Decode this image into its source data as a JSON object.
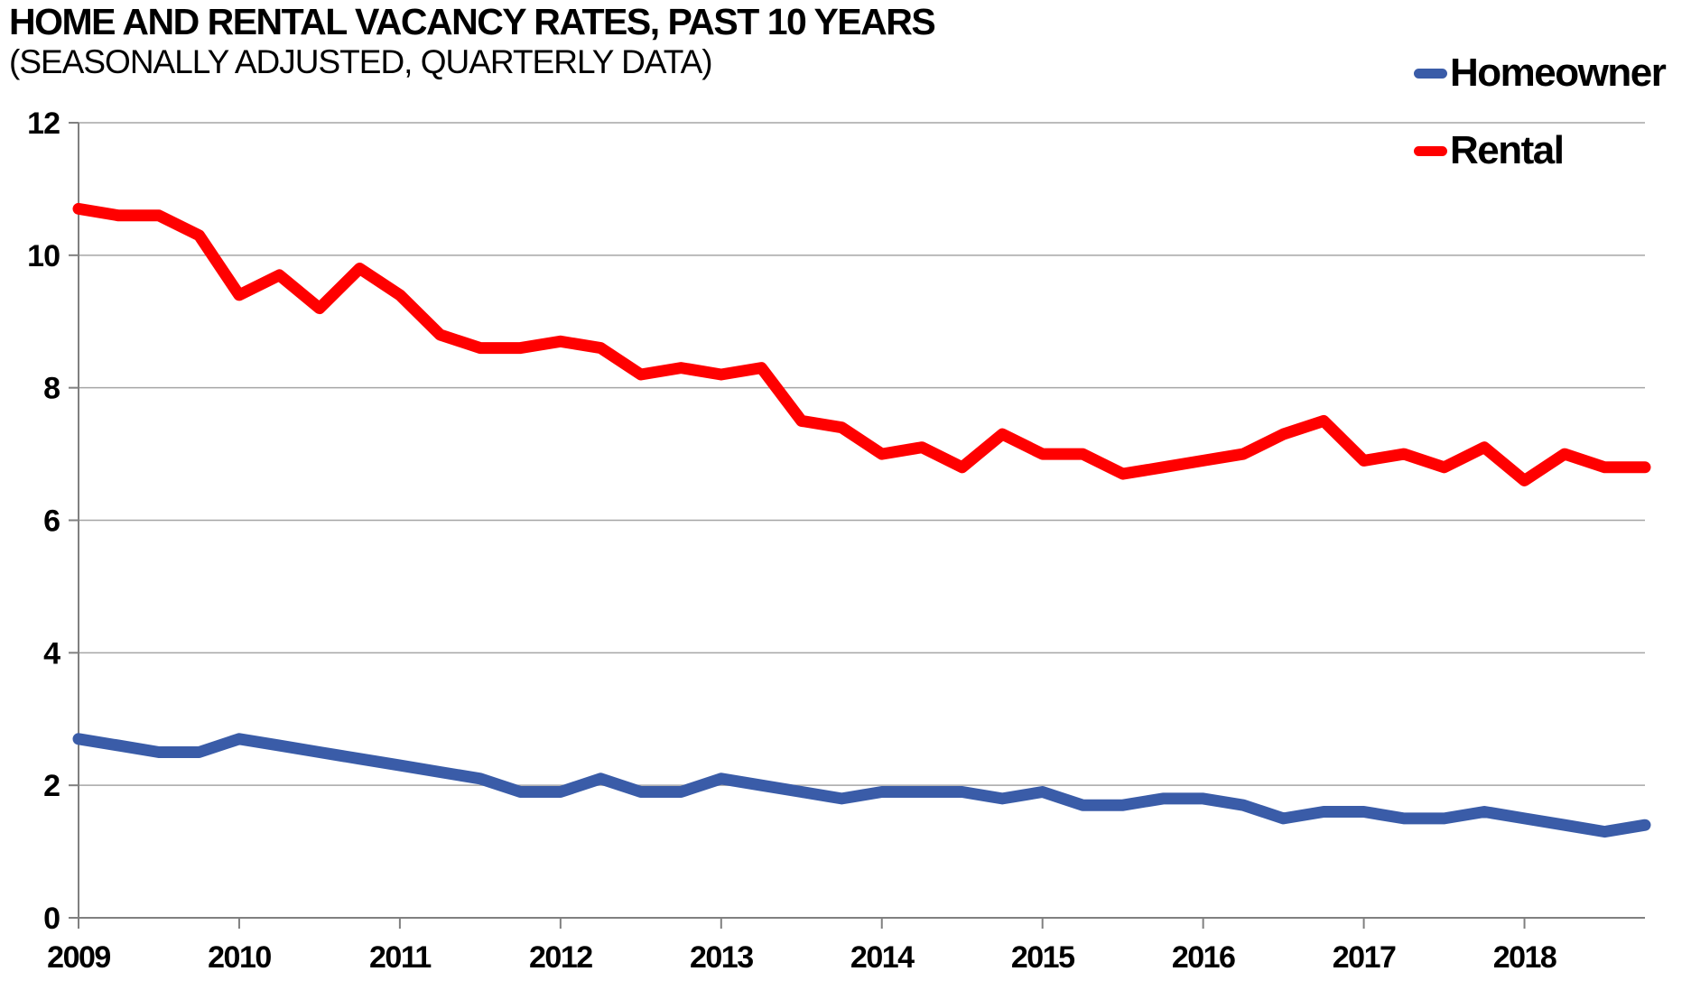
{
  "header": {
    "title": "HOME AND RENTAL VACANCY RATES, PAST 10 YEARS",
    "subtitle": "(SEASONALLY ADJUSTED, QUARTERLY DATA)"
  },
  "colors": {
    "homeowner_line": "#3A5CA8",
    "rental_line": "#FF0000",
    "gridline": "#A6A6A6",
    "axis": "#808080",
    "text": "#000000"
  },
  "chart_data": {
    "type": "line",
    "title": "HOME AND RENTAL VACANCY RATES, PAST 10 YEARS",
    "subtitle": "(SEASONALLY ADJUSTED, QUARTERLY DATA)",
    "x_unit": "quarterly (2009 Q1 - 2018 Q4)",
    "x_tick_labels": [
      "2009",
      "2010",
      "2011",
      "2012",
      "2013",
      "2014",
      "2015",
      "2016",
      "2017",
      "2018"
    ],
    "y_ticks": [
      0,
      2,
      4,
      6,
      8,
      10,
      12
    ],
    "ylim": [
      0,
      12
    ],
    "grid": true,
    "legend_position": "top-right",
    "series": [
      {
        "name": "Homeowner",
        "color": "#3A5CA8",
        "values": [
          2.7,
          2.6,
          2.5,
          2.5,
          2.7,
          2.6,
          2.5,
          2.4,
          2.3,
          2.2,
          2.1,
          1.9,
          1.9,
          2.1,
          1.9,
          1.9,
          2.1,
          2.0,
          1.9,
          1.8,
          1.9,
          1.9,
          1.9,
          1.8,
          1.9,
          1.7,
          1.7,
          1.8,
          1.8,
          1.7,
          1.5,
          1.6,
          1.6,
          1.5,
          1.5,
          1.6,
          1.5,
          1.4,
          1.3,
          1.4
        ]
      },
      {
        "name": "Rental",
        "color": "#FF0000",
        "values": [
          10.7,
          10.6,
          10.6,
          10.3,
          9.4,
          9.7,
          9.2,
          9.8,
          9.4,
          8.8,
          8.6,
          8.6,
          8.7,
          8.6,
          8.2,
          8.3,
          8.2,
          8.3,
          7.5,
          7.4,
          7.0,
          7.1,
          6.8,
          7.3,
          7.0,
          7.0,
          6.7,
          6.8,
          6.9,
          7.0,
          7.3,
          7.5,
          6.9,
          7.0,
          6.8,
          7.1,
          6.6,
          7.0,
          6.8,
          6.8
        ]
      }
    ]
  }
}
